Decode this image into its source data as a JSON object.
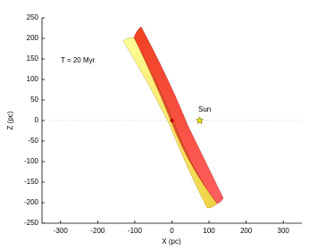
{
  "chart_data": {
    "type": "scatter",
    "xlabel": "X (pc)",
    "ylabel": "Z (pc)",
    "annotations": [
      "T = 20 Myr",
      "Sun"
    ],
    "xlim": [
      -350,
      350
    ],
    "xticks": [
      -300,
      -200,
      -100,
      0,
      100,
      200,
      300
    ],
    "ylim": [
      -250,
      250
    ],
    "yticks": [
      -250,
      -200,
      -150,
      -100,
      -50,
      0,
      50,
      100,
      150,
      200,
      250
    ],
    "series": [
      {
        "color": "#b00000",
        "marker": "dot",
        "x": [
          0
        ],
        "values": [
          0
        ]
      },
      {
        "color": "#e8e800",
        "marker": "star",
        "x": [
          75
        ],
        "values": [
          0
        ]
      }
    ]
  }
}
